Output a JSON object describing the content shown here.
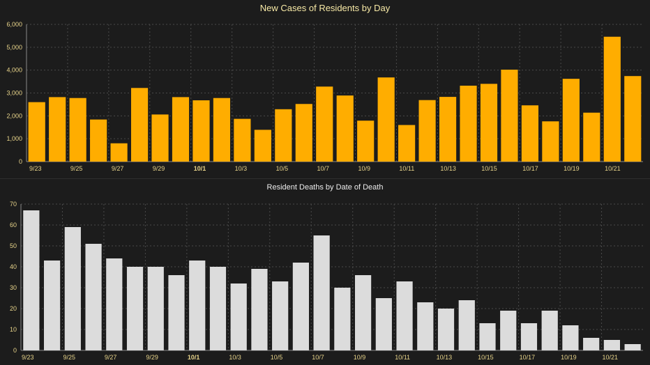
{
  "chart_data": [
    {
      "type": "bar",
      "title": "New Cases of Residents by Day",
      "xlabel": "",
      "ylabel": "",
      "ylim": [
        0,
        6000
      ],
      "yticks": [
        0,
        1000,
        2000,
        3000,
        4000,
        5000,
        6000
      ],
      "ytick_labels": [
        "0",
        "1,000",
        "2,000",
        "3,000",
        "4,000",
        "5,000",
        "6,000"
      ],
      "categories": [
        "9/23",
        "9/24",
        "9/25",
        "9/26",
        "9/27",
        "9/28",
        "9/29",
        "9/30",
        "10/1",
        "10/2",
        "10/3",
        "10/4",
        "10/5",
        "10/6",
        "10/7",
        "10/8",
        "10/9",
        "10/10",
        "10/11",
        "10/12",
        "10/13",
        "10/14",
        "10/15",
        "10/16",
        "10/17",
        "10/18",
        "10/19",
        "10/20",
        "10/21",
        "10/22"
      ],
      "values": [
        2600,
        2820,
        2780,
        1840,
        800,
        3220,
        2060,
        2820,
        2680,
        2780,
        1870,
        1390,
        2290,
        2520,
        3280,
        2890,
        1790,
        3680,
        1600,
        2690,
        2830,
        3320,
        3400,
        4020,
        2460,
        1760,
        3620,
        2140,
        5460,
        3740
      ],
      "tick_labels": [
        "9/23",
        "9/25",
        "9/27",
        "9/29",
        "10/1",
        "10/3",
        "10/5",
        "10/7",
        "10/9",
        "10/11",
        "10/13",
        "10/15",
        "10/17",
        "10/19",
        "10/21"
      ],
      "bold_tick": "10/1",
      "grid": true,
      "bar_color": "#ffad00",
      "title_color": "#f7e9a6",
      "tick_color": "#e8d48a",
      "bg_color": "#1c1c1c"
    },
    {
      "type": "bar",
      "title": "Resident Deaths by Date of Death",
      "xlabel": "",
      "ylabel": "",
      "ylim": [
        0,
        70
      ],
      "yticks": [
        0,
        10,
        20,
        30,
        40,
        50,
        60,
        70
      ],
      "ytick_labels": [
        "0",
        "10",
        "20",
        "30",
        "40",
        "50",
        "60",
        "70"
      ],
      "categories": [
        "9/23",
        "9/24",
        "9/25",
        "9/26",
        "9/27",
        "9/28",
        "9/29",
        "9/30",
        "10/1",
        "10/2",
        "10/3",
        "10/4",
        "10/5",
        "10/6",
        "10/7",
        "10/8",
        "10/9",
        "10/10",
        "10/11",
        "10/12",
        "10/13",
        "10/14",
        "10/15",
        "10/16",
        "10/17",
        "10/18",
        "10/19",
        "10/20",
        "10/21",
        "10/22"
      ],
      "values": [
        67,
        43,
        59,
        51,
        44,
        40,
        40,
        36,
        43,
        40,
        32,
        39,
        33,
        42,
        55,
        30,
        36,
        25,
        33,
        23,
        20,
        24,
        13,
        19,
        13,
        19,
        12,
        6,
        5,
        3
      ],
      "tick_labels": [
        "9/23",
        "9/25",
        "9/27",
        "9/29",
        "10/1",
        "10/3",
        "10/5",
        "10/7",
        "10/9",
        "10/11",
        "10/13",
        "10/15",
        "10/17",
        "10/19",
        "10/21"
      ],
      "bold_tick": "10/1",
      "grid": true,
      "bar_color": "#dcdcdc",
      "title_color": "#ececec",
      "tick_color": "#e8d48a",
      "bg_color": "#1c1c1c"
    }
  ]
}
